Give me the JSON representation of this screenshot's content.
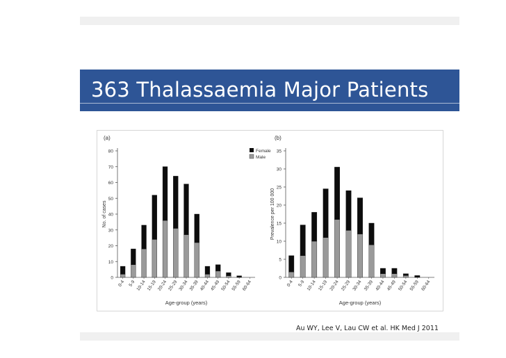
{
  "slide": {
    "title": "363 Thalassaemia Major Patients",
    "citation": "Au WY, Lee V, Lau CW et al. HK Med J 2011"
  },
  "colors": {
    "title_band": "#2e5596",
    "female": "#0d0d0d",
    "male": "#9a9a9a"
  },
  "chart_data": [
    {
      "type": "bar",
      "stacked": true,
      "panel_label": "(a)",
      "xlabel": "Age-group (years)",
      "ylabel": "No. of cases",
      "ylim": [
        0,
        80
      ],
      "yticks": [
        0,
        10,
        20,
        30,
        40,
        50,
        60,
        70,
        80
      ],
      "legend_position": "top-right",
      "categories": [
        "0-4",
        "5-9",
        "10-14",
        "15-19",
        "20-24",
        "25-29",
        "30-34",
        "35-39",
        "40-44",
        "45-49",
        "50-54",
        "55-59",
        "60-64"
      ],
      "series": [
        {
          "name": "Male",
          "values": [
            2,
            8,
            18,
            24,
            36,
            31,
            27,
            22,
            2,
            4,
            1,
            0,
            0
          ]
        },
        {
          "name": "Female",
          "values": [
            5,
            10,
            15,
            28,
            34,
            33,
            32,
            18,
            5,
            4,
            2,
            1,
            0
          ]
        }
      ]
    },
    {
      "type": "bar",
      "stacked": true,
      "panel_label": "(b)",
      "xlabel": "Age-group (years)",
      "ylabel": "Prevalence per 100 000",
      "ylim": [
        0,
        35
      ],
      "yticks": [
        0,
        5,
        10,
        15,
        20,
        25,
        30,
        35
      ],
      "categories": [
        "0-4",
        "5-9",
        "10-14",
        "15-19",
        "20-24",
        "25-29",
        "30-34",
        "35-39",
        "40-44",
        "45-49",
        "50-54",
        "55-59",
        "60-64"
      ],
      "series": [
        {
          "name": "Male",
          "values": [
            1.5,
            6,
            10,
            11,
            16,
            13,
            12,
            9,
            1,
            1,
            0.5,
            0,
            0
          ]
        },
        {
          "name": "Female",
          "values": [
            4.5,
            8.5,
            8,
            13.5,
            14.5,
            11,
            10,
            6,
            1.5,
            1.5,
            0.5,
            0.5,
            0
          ]
        }
      ]
    }
  ]
}
